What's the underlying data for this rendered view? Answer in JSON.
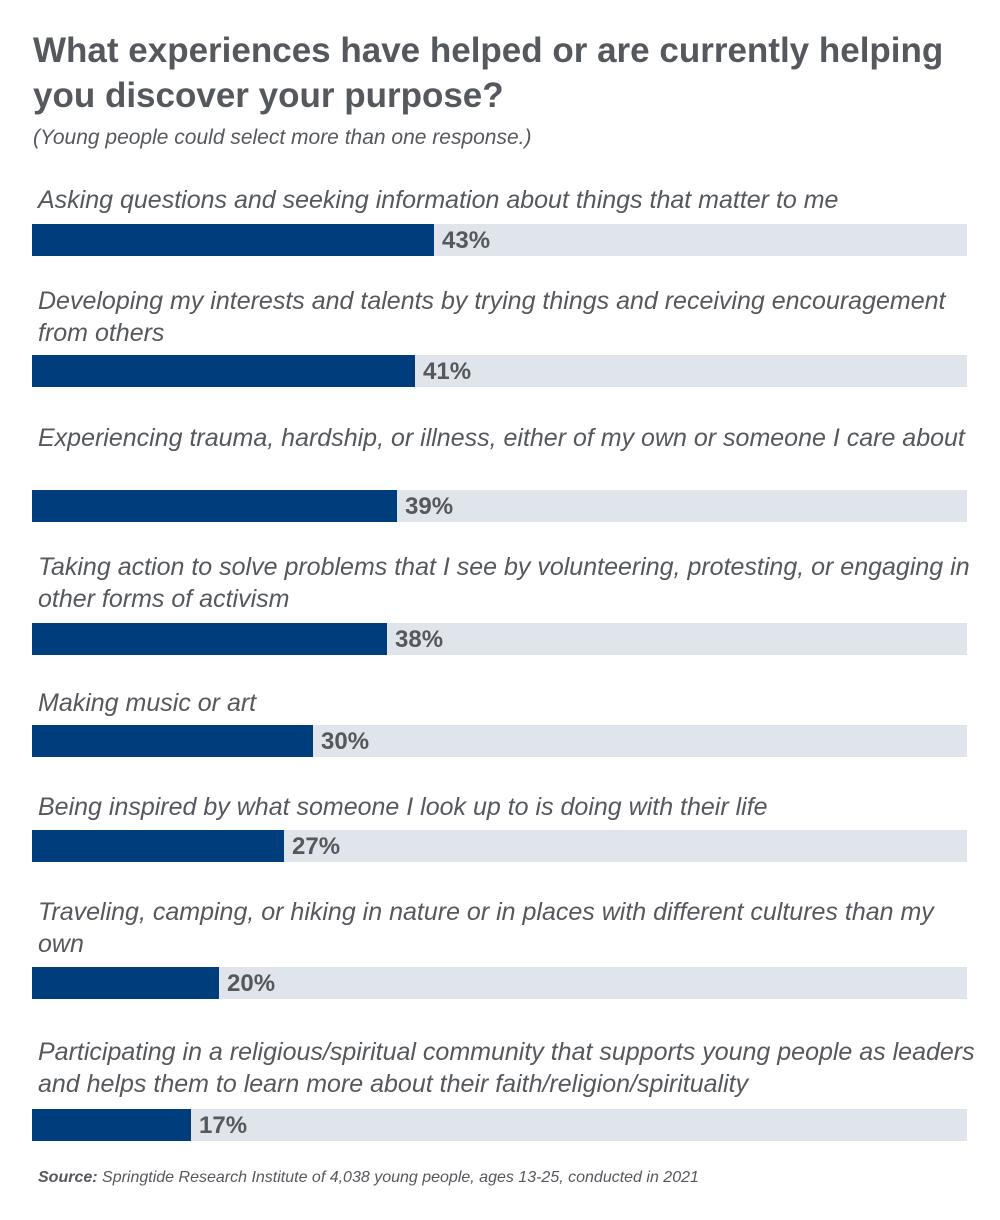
{
  "chart_data": {
    "type": "bar",
    "orientation": "horizontal",
    "title": "What experiences have helped or are currently helping you discover your purpose?",
    "subtitle": "(Young people could select more than one response.)",
    "categories": [
      "Asking questions and seeking information about things that matter to me",
      "Developing my interests and talents by trying things and receiving encouragement from others",
      "Experiencing trauma, hardship, or illness, either of my own or someone I care about",
      "Taking action to solve problems that I see by volunteering, protesting, or engaging in other forms of activism",
      "Making music or art",
      "Being inspired by what someone I look up to is doing with their life",
      "Traveling, camping, or hiking in nature or in places with different cultures than my own",
      "Participating in a religious/spiritual community that supports young people as leaders and helps them to learn more about their faith/religion/spirituality"
    ],
    "values": [
      43,
      41,
      39,
      38,
      30,
      27,
      20,
      17
    ],
    "value_labels": [
      "43%",
      "41%",
      "39%",
      "38%",
      "30%",
      "27%",
      "20%",
      "17%"
    ],
    "xlim": [
      0,
      100
    ],
    "grid": false,
    "colors": {
      "bar": "#003d7d",
      "track": "#e0e5ec",
      "text": "#55585c"
    }
  },
  "source": {
    "label": "Source:",
    "text": " Springtide Research Institute of 4,038 young people, ages 13-25, conducted in 2021"
  }
}
